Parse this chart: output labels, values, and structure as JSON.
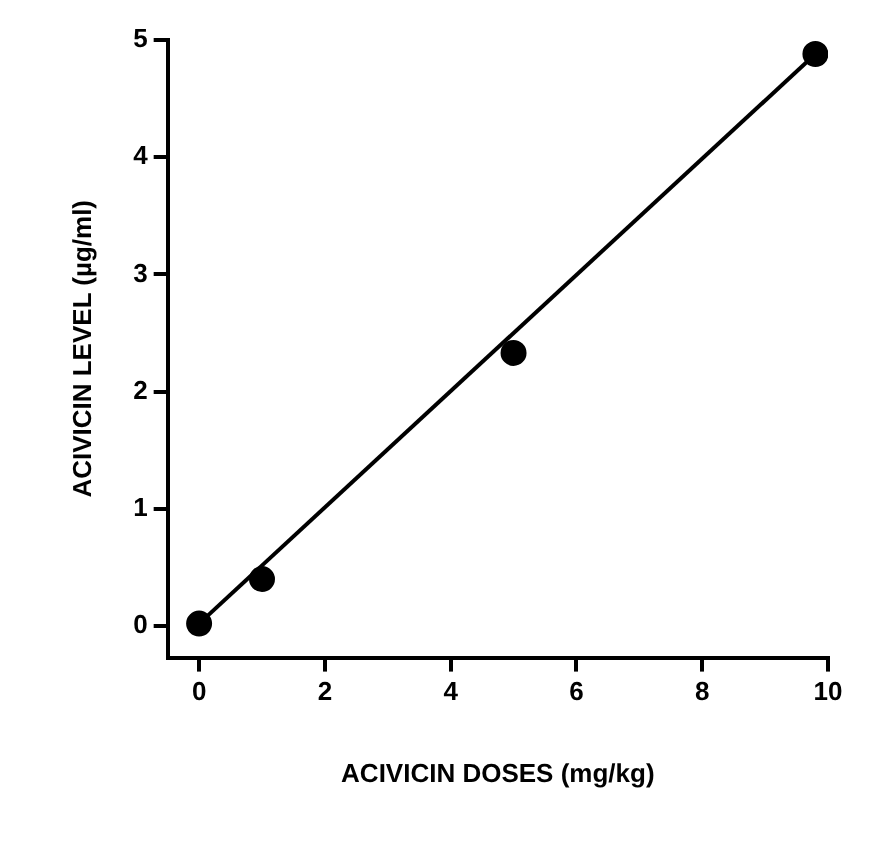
{
  "chart_data": {
    "type": "scatter",
    "xlabel": "ACIVICIN DOSES (mg/kg)",
    "ylabel": "ACIVICIN LEVEL (µg/ml)",
    "xlim": [
      -0.5,
      10
    ],
    "ylim": [
      -0.27,
      5
    ],
    "xticks": [
      0,
      2,
      4,
      6,
      8,
      10
    ],
    "yticks": [
      0,
      1,
      2,
      3,
      4,
      5
    ],
    "grid": false,
    "legend": false,
    "series": [
      {
        "color": "#000000",
        "marker": "circle",
        "x": [
          0,
          1,
          5,
          9.8
        ],
        "values": [
          0.02,
          0.4,
          2.33,
          4.88
        ]
      },
      {
        "type": "line",
        "color": "#000000",
        "marker": "none",
        "line_style": "solid",
        "x": [
          0,
          9.8
        ],
        "values": [
          0.02,
          4.88
        ]
      }
    ]
  }
}
